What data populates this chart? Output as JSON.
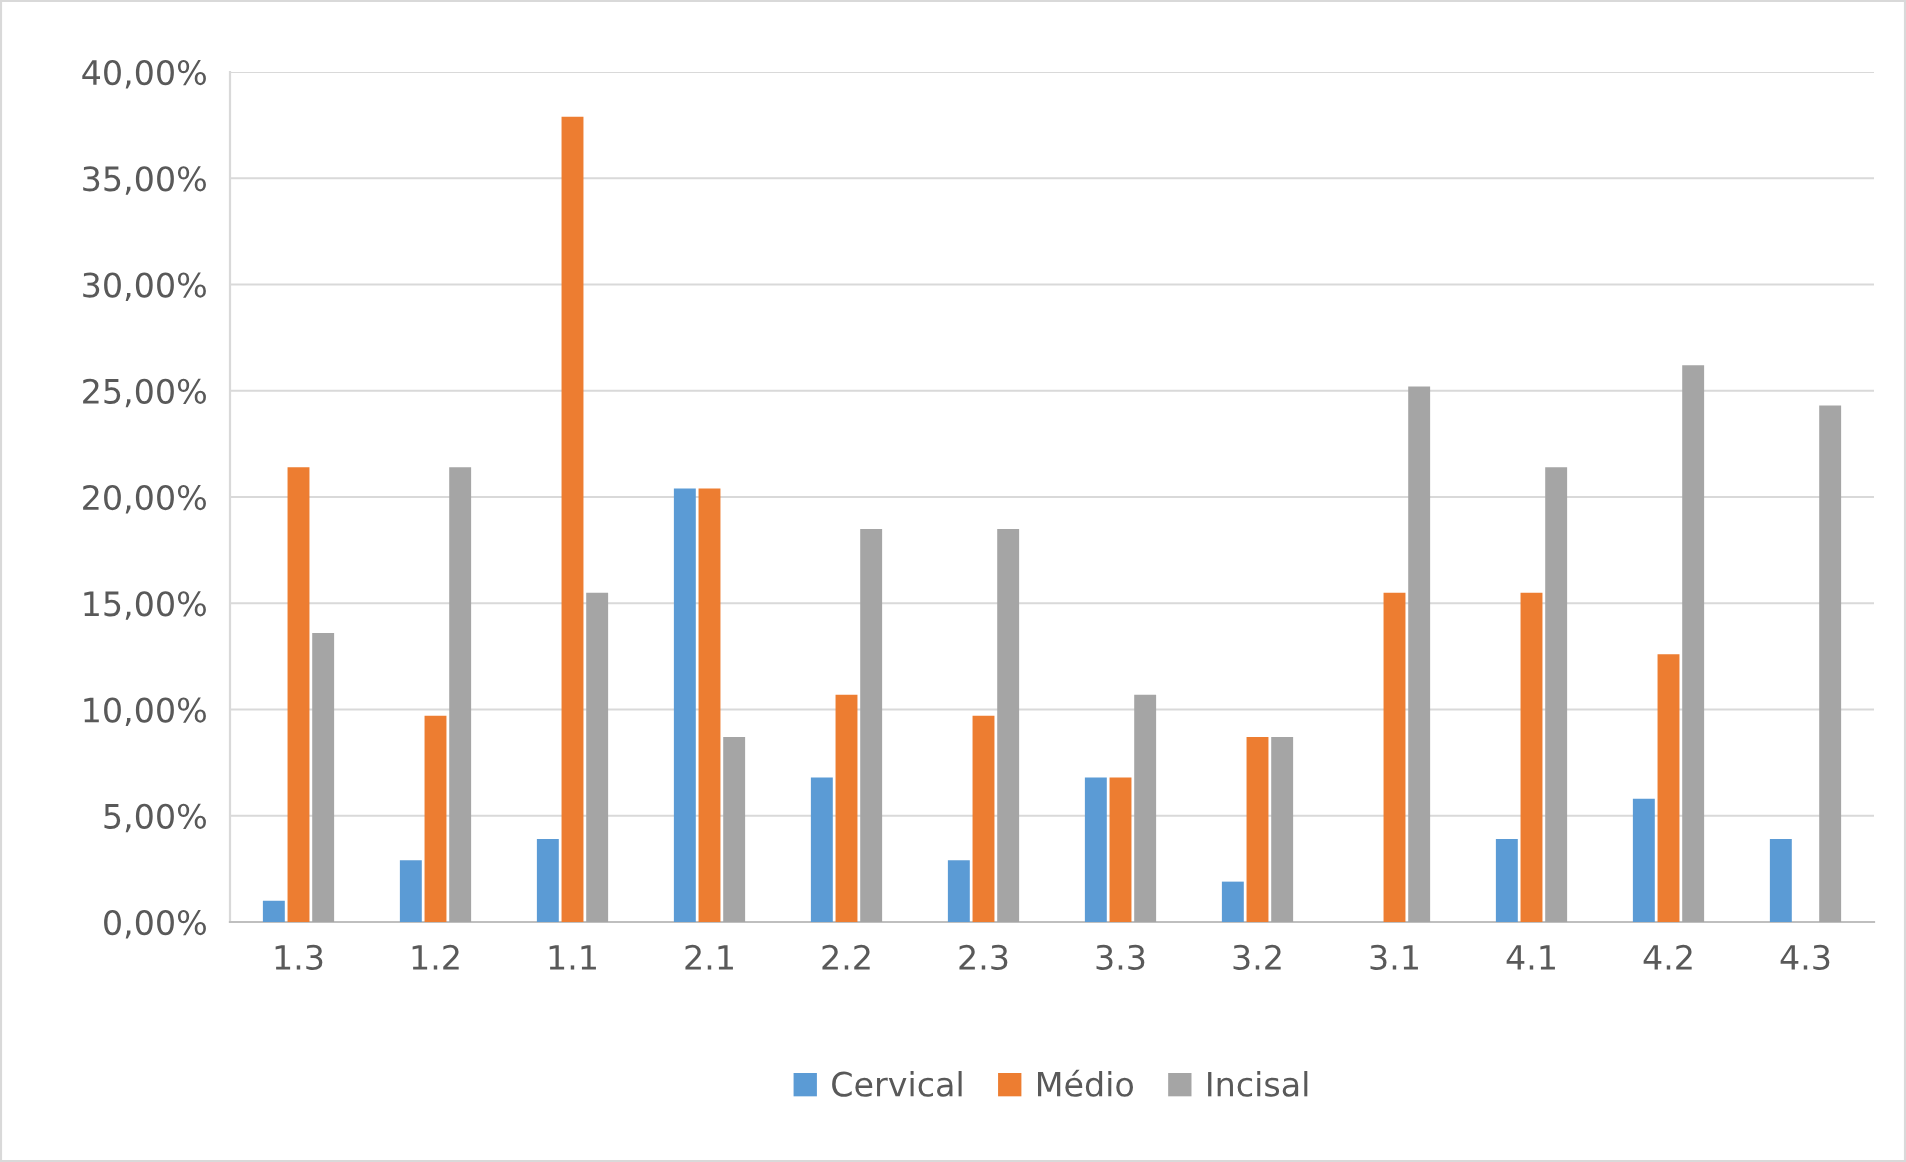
{
  "chart_data": {
    "type": "bar",
    "categories": [
      "1.3",
      "1.2",
      "1.1",
      "2.1",
      "2.2",
      "2.3",
      "3.3",
      "3.2",
      "3.1",
      "4.1",
      "4.2",
      "4.3"
    ],
    "series": [
      {
        "name": "Cervical",
        "color": "#5b9bd5",
        "values": [
          1.0,
          2.9,
          3.9,
          20.4,
          6.8,
          2.9,
          6.8,
          1.9,
          0,
          3.9,
          5.8,
          3.9
        ]
      },
      {
        "name": "Médio",
        "color": "#ed7d31",
        "values": [
          21.4,
          9.7,
          37.9,
          20.4,
          10.7,
          9.7,
          6.8,
          8.7,
          15.5,
          15.5,
          12.6,
          0
        ]
      },
      {
        "name": "Incisal",
        "color": "#a5a5a5",
        "values": [
          13.6,
          21.4,
          15.5,
          8.7,
          18.5,
          18.5,
          10.7,
          8.7,
          25.2,
          21.4,
          26.2,
          24.3
        ]
      }
    ],
    "ylim": [
      0,
      40
    ],
    "yticks": [
      {
        "value": 0,
        "label": "0,00%"
      },
      {
        "value": 5,
        "label": "5,00%"
      },
      {
        "value": 10,
        "label": "10,00%"
      },
      {
        "value": 15,
        "label": "15,00%"
      },
      {
        "value": 20,
        "label": "20,00%"
      },
      {
        "value": 25,
        "label": "25,00%"
      },
      {
        "value": 30,
        "label": "30,00%"
      },
      {
        "value": 35,
        "label": "35,00%"
      },
      {
        "value": 40,
        "label": "40,00%"
      }
    ],
    "grid": "y",
    "legend": "bottom"
  }
}
